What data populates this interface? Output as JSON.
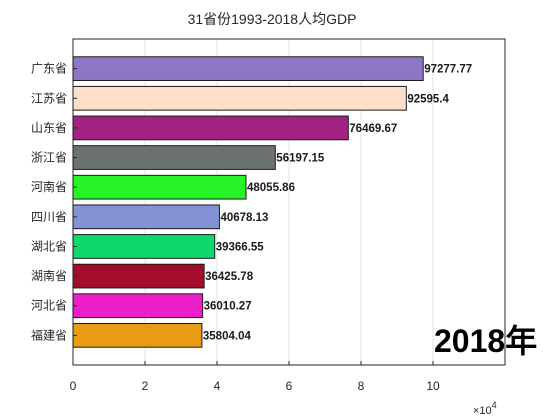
{
  "chart_data": {
    "type": "bar",
    "orientation": "horizontal",
    "title": "31省份1993-2018人均GDP",
    "categories": [
      "广东省",
      "江苏省",
      "山东省",
      "浙江省",
      "河南省",
      "四川省",
      "湖北省",
      "湖南省",
      "河北省",
      "福建省"
    ],
    "values": [
      97277.77,
      92595.4,
      76469.67,
      56197.15,
      48055.86,
      40678.13,
      39366.55,
      36425.78,
      36010.27,
      35804.04
    ],
    "data_labels": [
      "97277.77",
      "92595.4",
      "76469.67",
      "56197.15",
      "48055.86",
      "40678.13",
      "39366.55",
      "36425.78",
      "36010.27",
      "35804.04"
    ],
    "colors": [
      "#8B77C4",
      "#FEDEC8",
      "#A32385",
      "#6B7272",
      "#26F426",
      "#8593D6",
      "#0ED86B",
      "#A10D2B",
      "#EC1EC9",
      "#E89C14"
    ],
    "xlim": [
      0,
      120000
    ],
    "x_ticks": [
      0,
      20000,
      40000,
      60000,
      80000,
      100000
    ],
    "x_tick_labels": [
      "0",
      "2",
      "4",
      "6",
      "8",
      "10"
    ],
    "x_exponent_label": "×10",
    "x_exponent_power": "4",
    "grid": true,
    "year_label": "2018年"
  }
}
